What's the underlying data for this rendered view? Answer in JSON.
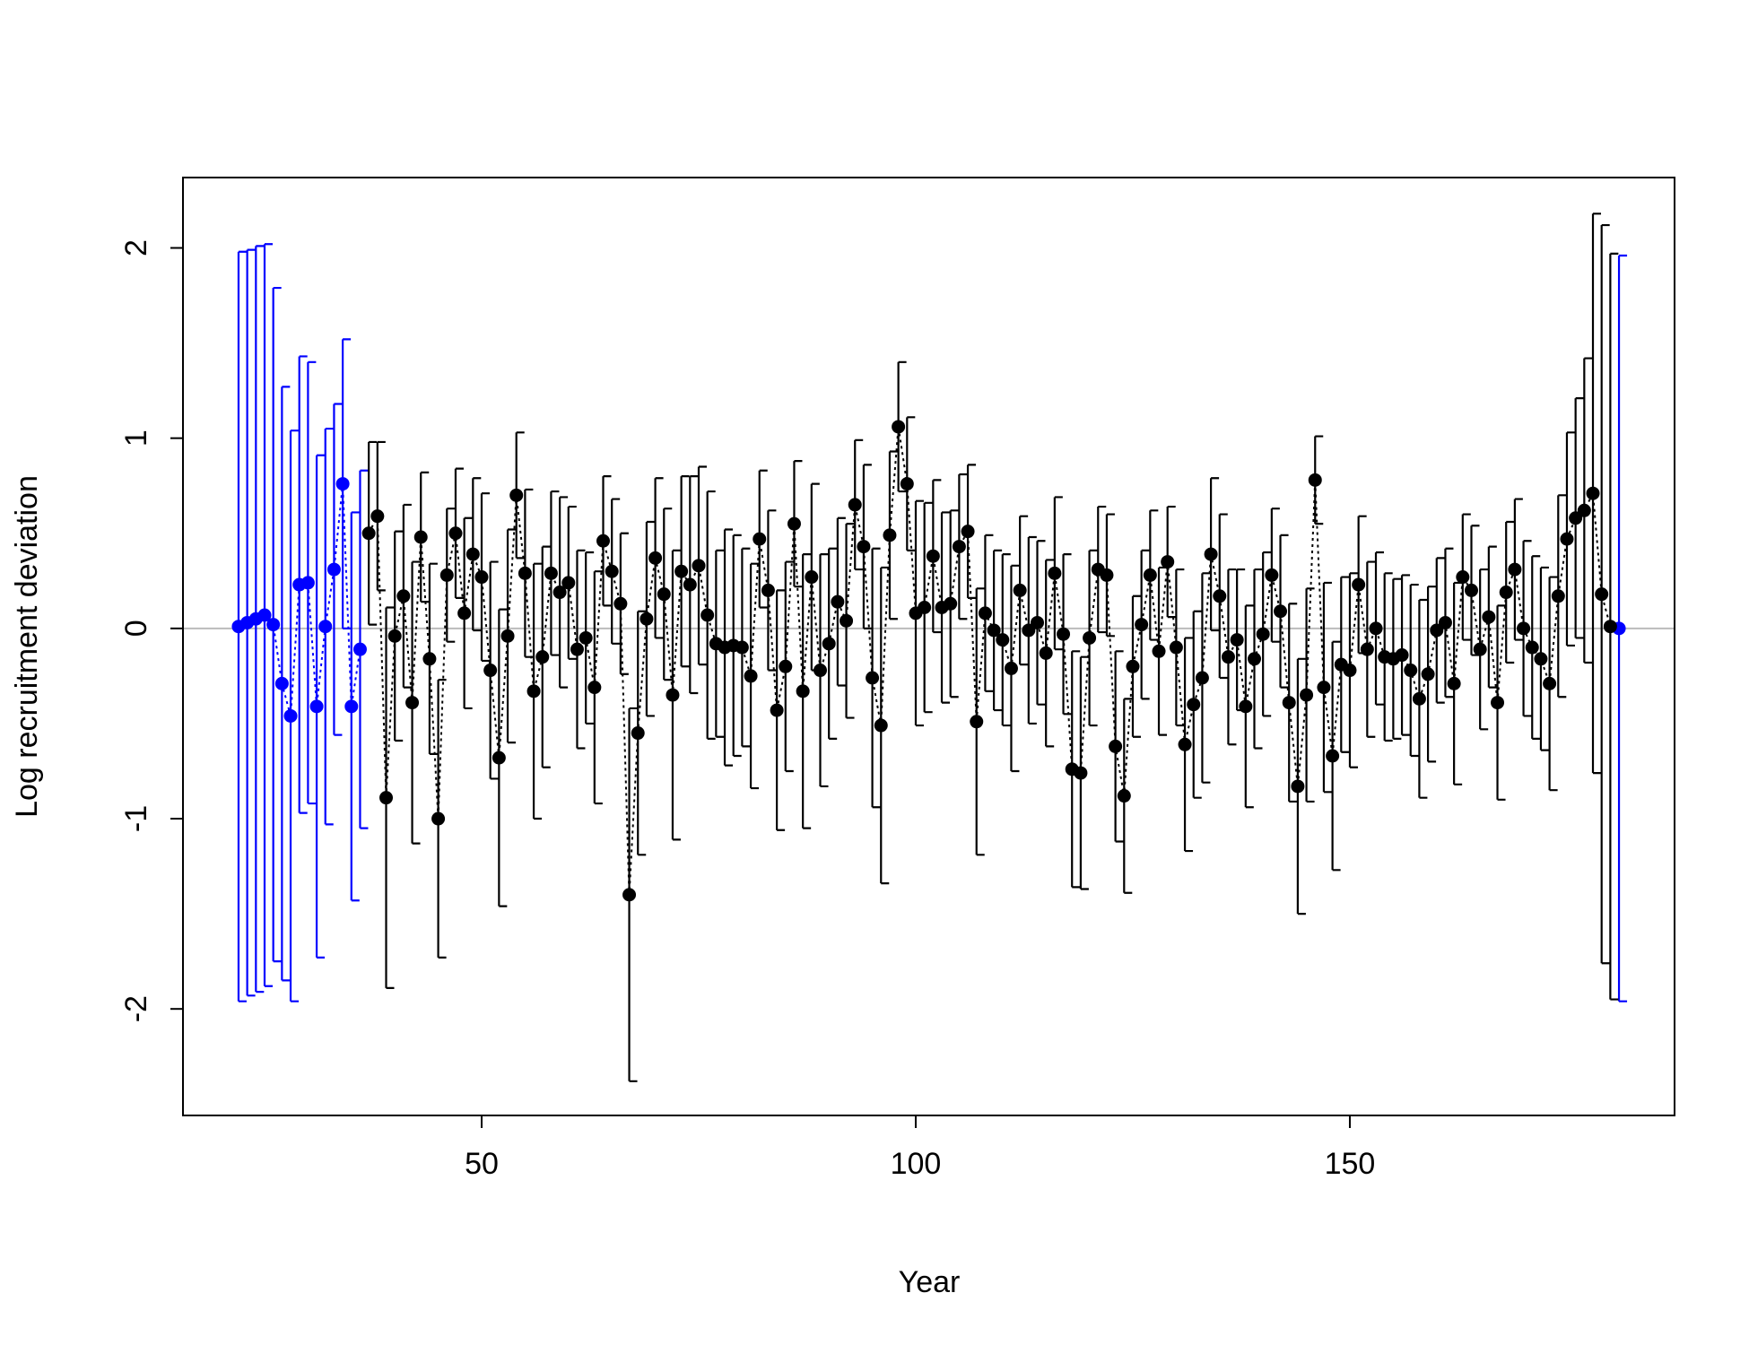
{
  "chart_data": {
    "type": "errorbar",
    "xlabel": "Year",
    "ylabel": "Log recruitment deviation",
    "xlim": [
      15.6,
      187.4
    ],
    "ylim": [
      -2.56,
      2.37
    ],
    "xticks": [
      50,
      100,
      150
    ],
    "yticks": [
      -2,
      -1,
      0,
      1,
      2
    ],
    "reference_line": 0,
    "reference_color": "#bbbbbb",
    "series": [
      {
        "color": "#0000ff",
        "x": [
          22,
          23,
          24,
          25,
          26,
          27,
          28,
          29,
          30,
          31,
          32,
          33,
          34,
          35,
          36,
          181
        ],
        "values": [
          0.01,
          0.03,
          0.05,
          0.07,
          0.02,
          -0.29,
          -0.46,
          0.23,
          0.24,
          -0.41,
          0.01,
          0.31,
          0.76,
          -0.41,
          -0.11,
          0.0
        ],
        "errors": [
          1.97,
          1.96,
          1.96,
          1.95,
          1.77,
          1.56,
          1.5,
          1.2,
          1.16,
          1.32,
          1.04,
          0.87,
          0.76,
          1.02,
          0.94,
          1.96
        ]
      },
      {
        "color": "#000000",
        "x": [
          37,
          38,
          39,
          40,
          41,
          42,
          43,
          44,
          45,
          46,
          47,
          48,
          49,
          50,
          51,
          52,
          53,
          54,
          55,
          56,
          57,
          58,
          59,
          60,
          61,
          62,
          63,
          64,
          65,
          66,
          67,
          68,
          69,
          70,
          71,
          72,
          73,
          74,
          75,
          76,
          77,
          78,
          79,
          80,
          81,
          82,
          83,
          84,
          85,
          86,
          87,
          88,
          89,
          90,
          91,
          92,
          93,
          94,
          95,
          96,
          97,
          98,
          99,
          100,
          101,
          102,
          103,
          104,
          105,
          106,
          107,
          108,
          109,
          110,
          111,
          112,
          113,
          114,
          115,
          116,
          117,
          118,
          119,
          120,
          121,
          122,
          123,
          124,
          125,
          126,
          127,
          128,
          129,
          130,
          131,
          132,
          133,
          134,
          135,
          136,
          137,
          138,
          139,
          140,
          141,
          142,
          143,
          144,
          145,
          146,
          147,
          148,
          149,
          150,
          151,
          152,
          153,
          154,
          155,
          156,
          157,
          158,
          159,
          160,
          161,
          162,
          163,
          164,
          165,
          166,
          167,
          168,
          169,
          170,
          171,
          172,
          173,
          174,
          175,
          176,
          177,
          178,
          179,
          180
        ],
        "values": [
          0.5,
          0.59,
          -0.89,
          -0.04,
          0.17,
          -0.39,
          0.48,
          -0.16,
          -1.0,
          0.28,
          0.5,
          0.08,
          0.39,
          0.27,
          -0.22,
          -0.68,
          -0.04,
          0.7,
          0.29,
          -0.33,
          -0.15,
          0.29,
          0.19,
          0.24,
          -0.11,
          -0.05,
          -0.31,
          0.46,
          0.3,
          0.13,
          -1.4,
          -0.55,
          0.05,
          0.37,
          0.18,
          -0.35,
          0.3,
          0.23,
          0.33,
          0.07,
          -0.08,
          -0.1,
          -0.09,
          -0.1,
          -0.25,
          0.47,
          0.2,
          -0.43,
          -0.2,
          0.55,
          -0.33,
          0.27,
          -0.22,
          -0.08,
          0.14,
          0.04,
          0.65,
          0.43,
          -0.26,
          -0.51,
          0.49,
          1.06,
          0.76,
          0.08,
          0.11,
          0.38,
          0.11,
          0.13,
          0.43,
          0.51,
          -0.49,
          0.08,
          -0.01,
          -0.06,
          -0.21,
          0.2,
          -0.01,
          0.03,
          -0.13,
          0.29,
          -0.03,
          -0.74,
          -0.76,
          -0.05,
          0.31,
          0.28,
          -0.62,
          -0.88,
          -0.2,
          0.02,
          0.28,
          -0.12,
          0.35,
          -0.1,
          -0.61,
          -0.4,
          -0.26,
          0.39,
          0.17,
          -0.15,
          -0.06,
          -0.41,
          -0.16,
          -0.03,
          0.28,
          0.09,
          -0.39,
          -0.83,
          -0.35,
          0.78,
          -0.31,
          -0.67,
          -0.19,
          -0.22,
          0.23,
          -0.11,
          0.0,
          -0.15,
          -0.16,
          -0.14,
          -0.22,
          -0.37,
          -0.24,
          -0.01,
          0.03,
          -0.29,
          0.27,
          0.2,
          -0.11,
          0.06,
          -0.39,
          0.19,
          0.31,
          0.0,
          -0.1,
          -0.16,
          -0.29,
          0.17,
          0.47,
          0.58,
          0.62,
          0.71,
          0.18,
          0.01
        ],
        "errors": [
          0.48,
          0.39,
          1.0,
          0.55,
          0.48,
          0.74,
          0.34,
          0.5,
          0.73,
          0.35,
          0.34,
          0.5,
          0.4,
          0.44,
          0.57,
          0.78,
          0.56,
          0.33,
          0.44,
          0.67,
          0.58,
          0.43,
          0.5,
          0.4,
          0.52,
          0.45,
          0.61,
          0.34,
          0.38,
          0.37,
          0.98,
          0.64,
          0.51,
          0.42,
          0.45,
          0.76,
          0.5,
          0.57,
          0.52,
          0.65,
          0.49,
          0.62,
          0.58,
          0.52,
          0.59,
          0.36,
          0.42,
          0.63,
          0.55,
          0.33,
          0.72,
          0.49,
          0.61,
          0.5,
          0.44,
          0.51,
          0.34,
          0.43,
          0.68,
          0.83,
          0.44,
          0.34,
          0.35,
          0.59,
          0.55,
          0.4,
          0.5,
          0.49,
          0.38,
          0.35,
          0.7,
          0.41,
          0.42,
          0.45,
          0.54,
          0.39,
          0.49,
          0.43,
          0.49,
          0.4,
          0.42,
          0.62,
          0.61,
          0.46,
          0.33,
          0.32,
          0.5,
          0.51,
          0.37,
          0.39,
          0.34,
          0.44,
          0.29,
          0.41,
          0.56,
          0.49,
          0.55,
          0.4,
          0.43,
          0.46,
          0.37,
          0.53,
          0.47,
          0.43,
          0.35,
          0.4,
          0.52,
          0.67,
          0.56,
          0.23,
          0.55,
          0.6,
          0.46,
          0.51,
          0.36,
          0.46,
          0.4,
          0.44,
          0.42,
          0.42,
          0.45,
          0.52,
          0.46,
          0.38,
          0.39,
          0.53,
          0.33,
          0.34,
          0.42,
          0.37,
          0.51,
          0.37,
          0.37,
          0.46,
          0.48,
          0.48,
          0.56,
          0.53,
          0.56,
          0.63,
          0.8,
          1.47,
          1.94,
          1.96
        ]
      }
    ]
  }
}
